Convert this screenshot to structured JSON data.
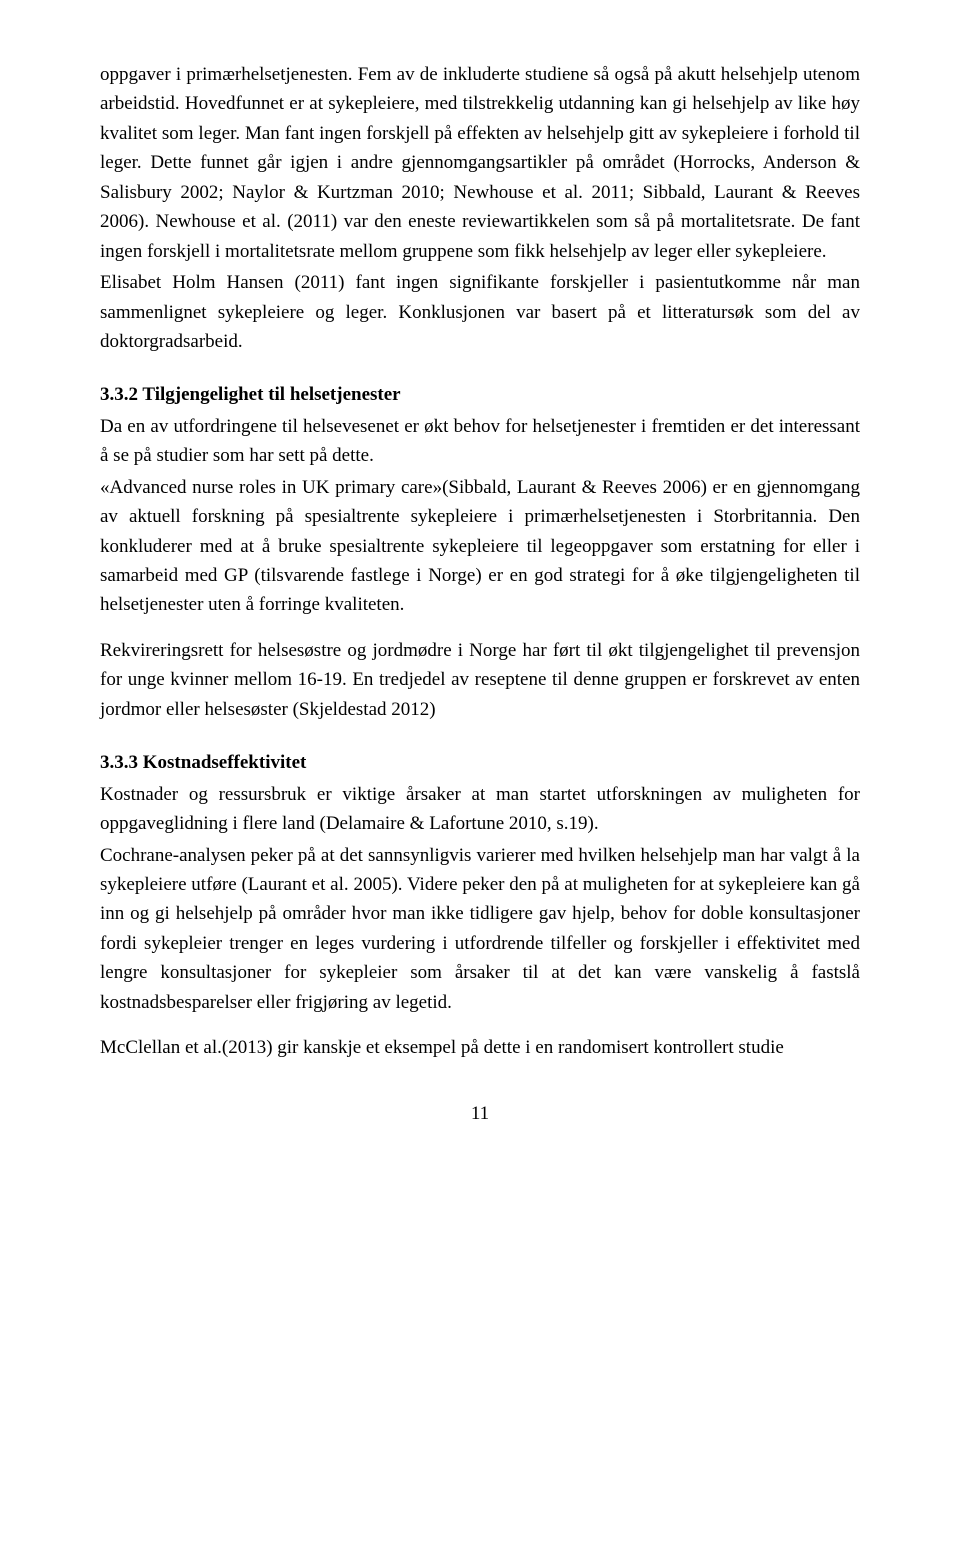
{
  "para1": "oppgaver i primærhelsetjenesten. Fem av de inkluderte studiene så også på akutt helsehjelp utenom arbeidstid. Hovedfunnet er at sykepleiere, med tilstrekkelig utdanning kan gi helsehjelp av like høy kvalitet som leger. Man fant ingen forskjell på effekten av helsehjelp gitt av sykepleiere i forhold til leger. Dette funnet går igjen i andre gjennomgangsartikler på området (Horrocks, Anderson & Salisbury 2002; Naylor & Kurtzman 2010; Newhouse et al. 2011; Sibbald, Laurant & Reeves 2006). Newhouse et al. (2011) var den eneste reviewartikkelen som så på mortalitetsrate. De fant ingen forskjell i mortalitetsrate mellom gruppene som fikk helsehjelp av leger eller sykepleiere.",
  "para2": "Elisabet Holm Hansen (2011) fant ingen signifikante forskjeller i pasientutkomme når man sammenlignet sykepleiere og leger. Konklusjonen var basert på et litteratursøk som del av doktorgradsarbeid.",
  "heading1": "3.3.2 Tilgjengelighet til helsetjenester",
  "para3": "Da en av utfordringene til helsevesenet er økt behov for helsetjenester i fremtiden er det interessant å se på studier som har sett på dette.",
  "para4": "«Advanced nurse roles in UK primary care»(Sibbald, Laurant & Reeves 2006) er en gjennomgang av aktuell forskning på spesialtrente sykepleiere i primærhelsetjenesten i Storbritannia. Den konkluderer med at å bruke spesialtrente sykepleiere til legeoppgaver som erstatning for eller i samarbeid med GP (tilsvarende fastlege i Norge) er en god strategi for å øke tilgjengeligheten til helsetjenester uten å forringe kvaliteten.",
  "para5": "Rekvireringsrett for helsesøstre og jordmødre i Norge har ført til økt tilgjengelighet til prevensjon for unge kvinner mellom 16-19. En tredjedel av reseptene til denne gruppen er forskrevet av enten jordmor eller helsesøster (Skjeldestad 2012)",
  "heading2": "3.3.3 Kostnadseffektivitet",
  "para6": "Kostnader og ressursbruk er viktige årsaker at man startet utforskningen av muligheten for oppgaveglidning i flere land (Delamaire & Lafortune 2010, s.19).",
  "para7": "Cochrane-analysen peker på at det sannsynligvis varierer med hvilken helsehjelp man har valgt å la sykepleiere utføre (Laurant et al. 2005). Videre peker den på at muligheten for at sykepleiere kan gå inn og gi helsehjelp på områder hvor man ikke tidligere gav hjelp, behov for doble konsultasjoner fordi sykepleier trenger en leges vurdering i utfordrende tilfeller og forskjeller i effektivitet med lengre konsultasjoner for sykepleier som årsaker til at det kan være vanskelig å fastslå kostnadsbesparelser eller frigjøring av legetid.",
  "para8": "McClellan et al.(2013) gir kanskje et eksempel på dette i en randomisert kontrollert studie",
  "pageNumber": "11"
}
